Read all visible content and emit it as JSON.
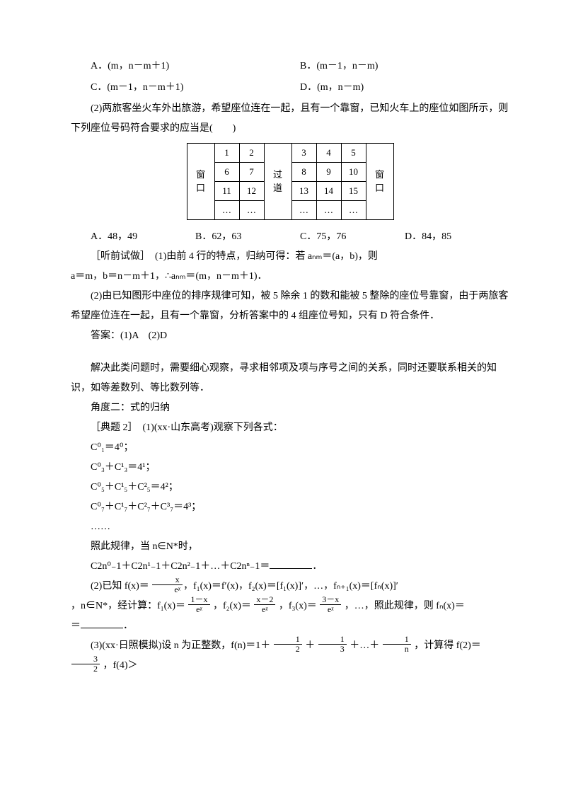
{
  "q1_options": {
    "A": "A．(m，n－m＋1)",
    "B": "B．(m－1，n－m)",
    "C": "C．(m－1，n－m＋1)",
    "D": "D．(m，n－m)"
  },
  "q2_stem": "(2)两旅客坐火车外出旅游，希望座位连在一起，且有一个靠窗，已知火车上的座位如图所示，则下列座位号码符合要求的应当是(　　)",
  "seat_table": {
    "left_label_top": "窗",
    "left_label_bot": "口",
    "aisle_top": "过",
    "aisle_bot": "道",
    "right_label_top": "窗",
    "right_label_bot": "口",
    "rows": [
      [
        "1",
        "2",
        "",
        "3",
        "4",
        "5"
      ],
      [
        "6",
        "7",
        "",
        "8",
        "9",
        "10"
      ],
      [
        "11",
        "12",
        "",
        "13",
        "14",
        "15"
      ],
      [
        "…",
        "…",
        "",
        "…",
        "…",
        "…"
      ]
    ]
  },
  "q2_options": {
    "A": "A．48，49",
    "B": "B．62，63",
    "C": "C．75，76",
    "D": "D．84，85"
  },
  "sol_lead": "［听前试做］　(1)由前 4 行的特点，归纳可得：若 aₙₘ＝(a，b)，则",
  "sol_line2": "a＝m，b＝n－m＋1，∴aₙₘ＝(m，n－m＋1)．",
  "sol_p2": "(2)由已知图形中座位的排序规律可知，被 5 除余 1 的数和能被 5 整除的座位号靠窗，由于两旅客希望座位连在一起，且有一个靠窗，分析答案中的 4 组座位号知，只有 D 符合条件．",
  "ans": "答案：(1)A　(2)D",
  "tip": "解决此类问题时，需要细心观察，寻求相邻项及项与序号之间的关系，同时还要联系相关的知识，如等差数列、等比数列等．",
  "angle2": "角度二：式的归纳",
  "ex2_head": "［典题 2］　(1)(xx·山东高考)观察下列各式：",
  "ex2_lines": [
    "C⁰₁＝4⁰；",
    "C⁰₃＋C¹₃＝4¹；",
    "C⁰₅＋C¹₅＋C²₅＝4²；",
    "C⁰₇＋C¹₇＋C²₇＋C³₇＝4³；",
    "……"
  ],
  "ex2_rule": "照此规律，当 n∈N*时，",
  "ex2_target_prefix": "C2n⁰₋1＋C2n¹₋1＋C2n²₋1＋…＋C2nⁿ₋1＝",
  "p2_prefix": "(2)已知 f(x)＝",
  "p2_frac1_num": "x",
  "p2_frac1_den": "eᵡ",
  "p2_mid": "，f₁(x)＝f′(x)，f₂(x)＝[f₁(x)]′，…，fₙ₊₁(x)＝[fₙ(x)]′",
  "p2_line2a": "，n∈N*，经计算：f₁(x)＝",
  "p2_f1_num": "1－x",
  "p2_f1_den": "eᵡ",
  "p2_f2_lbl": "，f₂(x)＝",
  "p2_f2_num": "x－2",
  "p2_f2_den": "eᵡ",
  "p2_f3_lbl": "，f₃(x)＝",
  "p2_f3_num": "3－x",
  "p2_f3_den": "eᵡ",
  "p2_tail": "，…，照此规律，则 fₙ(x)＝",
  "p3_prefix": "(3)(xx·日照模拟)设 n 为正整数，f(n)＝1＋",
  "f_half_num": "1",
  "f_half_den": "2",
  "plus": "＋",
  "f_third_num": "1",
  "f_third_den": "3",
  "dots": "＋…＋",
  "f_n_num": "1",
  "f_n_den": "n",
  "p3_mid": "，计算得 f(2)＝",
  "f_32_num": "3",
  "f_32_den": "2",
  "p3_tail": "，f(4)＞",
  "colors": {
    "text": "#000000",
    "bg": "#ffffff",
    "border": "#000000"
  },
  "fontsize_pt": 10.5
}
